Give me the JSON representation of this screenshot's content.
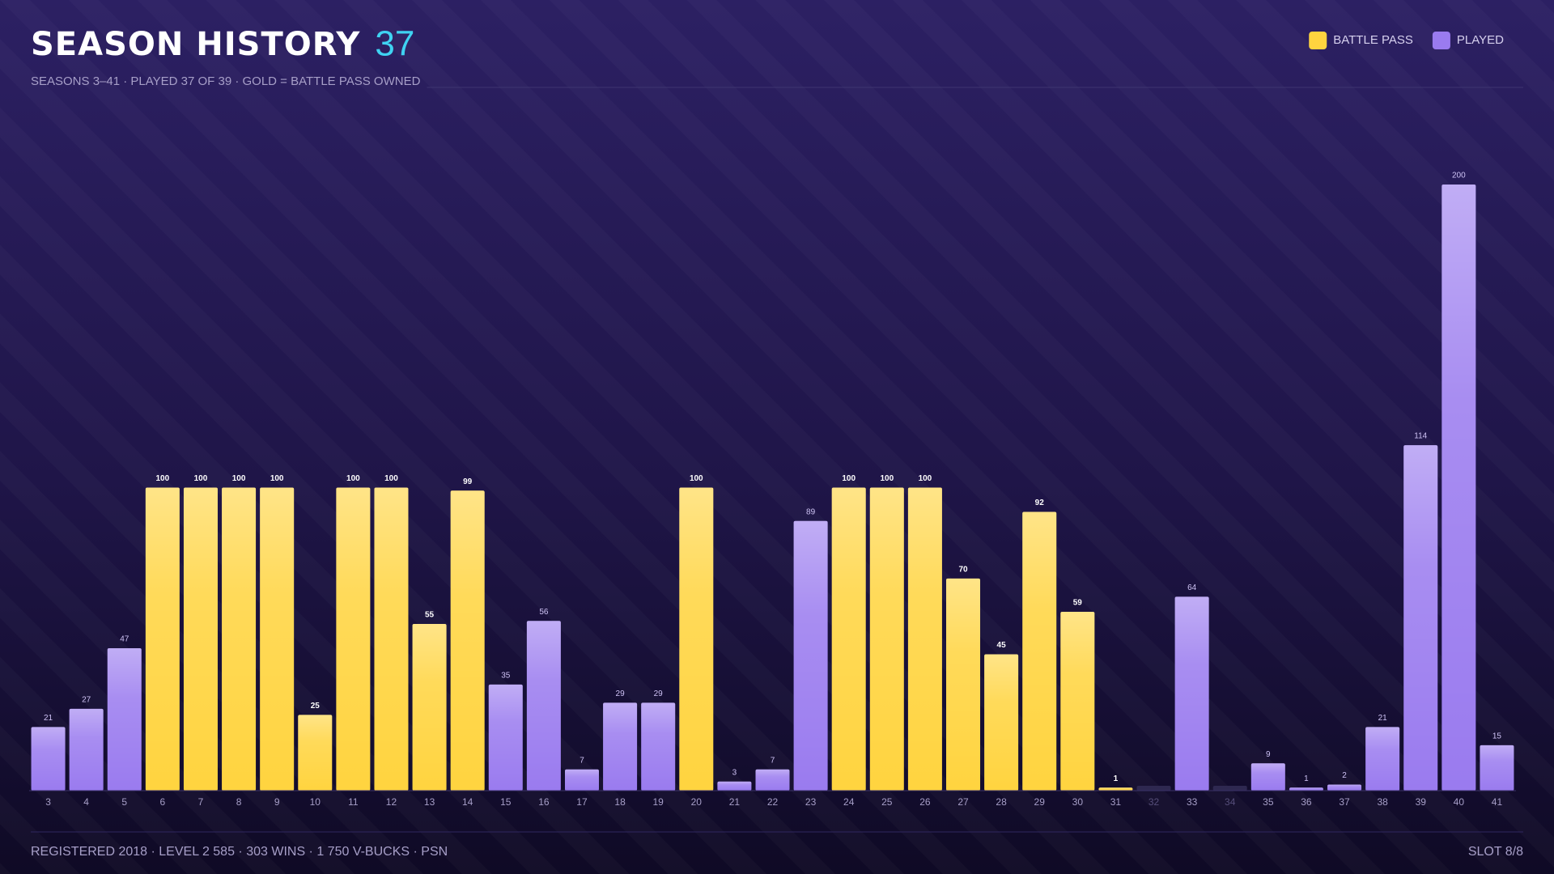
{
  "header": {
    "title": "SEASON HISTORY",
    "count": "37",
    "subtitle": "SEASONS 3–41 · PLAYED 37 OF 39 · GOLD = BATTLE PASS OWNED"
  },
  "chart_data": {
    "type": "bar",
    "categories": [
      "3",
      "4",
      "5",
      "6",
      "7",
      "8",
      "9",
      "10",
      "11",
      "12",
      "13",
      "14",
      "15",
      "16",
      "17",
      "18",
      "19",
      "20",
      "21",
      "22",
      "23",
      "24",
      "25",
      "26",
      "27",
      "28",
      "29",
      "30",
      "31",
      "32",
      "33",
      "34",
      "35",
      "36",
      "37",
      "38",
      "39",
      "40",
      "41"
    ],
    "series": [
      {
        "name": "BATTLE PASS",
        "color": "#ffd43f",
        "values": [
          null,
          null,
          null,
          100,
          100,
          100,
          100,
          25,
          100,
          100,
          55,
          99,
          null,
          null,
          null,
          null,
          null,
          100,
          null,
          null,
          null,
          100,
          100,
          100,
          70,
          45,
          92,
          59,
          1,
          null,
          null,
          null,
          null,
          null,
          null,
          null,
          null,
          null,
          null
        ]
      },
      {
        "name": "PLAYED",
        "color": "#9a7bef",
        "values": [
          21,
          27,
          47,
          null,
          null,
          null,
          null,
          null,
          null,
          null,
          null,
          null,
          35,
          56,
          7,
          29,
          29,
          null,
          3,
          7,
          89,
          null,
          null,
          null,
          null,
          null,
          null,
          null,
          null,
          null,
          64,
          null,
          9,
          1,
          2,
          21,
          114,
          200,
          15
        ]
      }
    ],
    "ylim": [
      0,
      200
    ],
    "legend": "top-right"
  },
  "footer": {
    "stats": "REGISTERED 2018 · LEVEL 2 585 · 303 WINS · 1 750 V-BUCKS · PSN",
    "slot": "SLOT 8/8"
  }
}
